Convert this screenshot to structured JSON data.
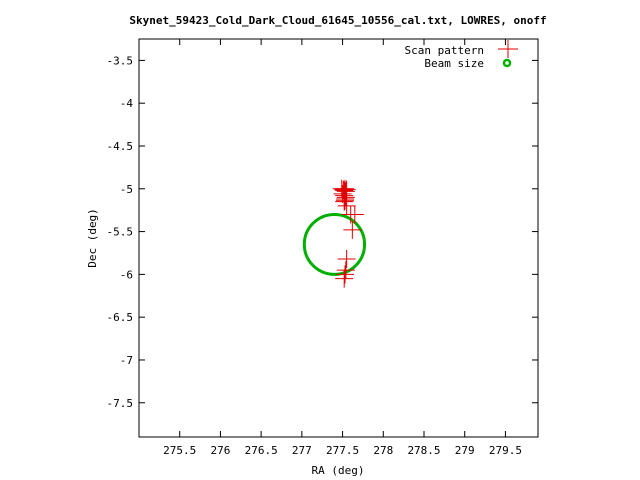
{
  "chart_data": {
    "type": "scatter",
    "title": "Skynet_59423_Cold_Dark_Cloud_61645_10556_cal.txt, LOWRES, onoff",
    "xlabel": "RA (deg)",
    "ylabel": "Dec (deg)",
    "xlim": [
      275.0,
      279.9
    ],
    "ylim": [
      -7.9,
      -3.25
    ],
    "xticks": [
      275.5,
      276,
      276.5,
      277,
      277.5,
      278,
      278.5,
      279,
      279.5
    ],
    "xtick_labels": [
      "275.5",
      "276",
      "276.5",
      "277",
      "277.5",
      "278",
      "278.5",
      "279",
      "279.5"
    ],
    "yticks": [
      -3.5,
      -4,
      -4.5,
      -5,
      -5.5,
      -6,
      -6.5,
      -7,
      -7.5
    ],
    "ytick_labels": [
      "-3.5",
      "-4",
      "-4.5",
      "-5",
      "-5.5",
      "-6",
      "-6.5",
      "-7",
      "-7.5"
    ],
    "grid": false,
    "legend_position": "top-right",
    "series": [
      {
        "name": "Scan pattern",
        "marker": "plus",
        "color": "#e00000",
        "x": [
          277.49,
          277.51,
          277.52,
          277.53,
          277.54,
          277.55,
          277.5,
          277.52,
          277.54,
          277.53,
          277.52,
          277.53,
          277.55,
          277.6,
          277.65,
          277.62,
          277.55,
          277.54,
          277.53,
          277.52
        ],
        "y": [
          -5.0,
          -5.01,
          -5.02,
          -5.0,
          -5.03,
          -5.01,
          -5.06,
          -5.08,
          -5.1,
          -5.12,
          -5.15,
          -5.14,
          -5.2,
          -5.3,
          -5.3,
          -5.48,
          -5.82,
          -5.95,
          -6.0,
          -6.05
        ]
      },
      {
        "name": "Beam size",
        "marker": "circle",
        "color": "#00b000",
        "center": [
          277.4,
          -5.65
        ],
        "radius": [
          0.37,
          0.35
        ]
      }
    ]
  }
}
